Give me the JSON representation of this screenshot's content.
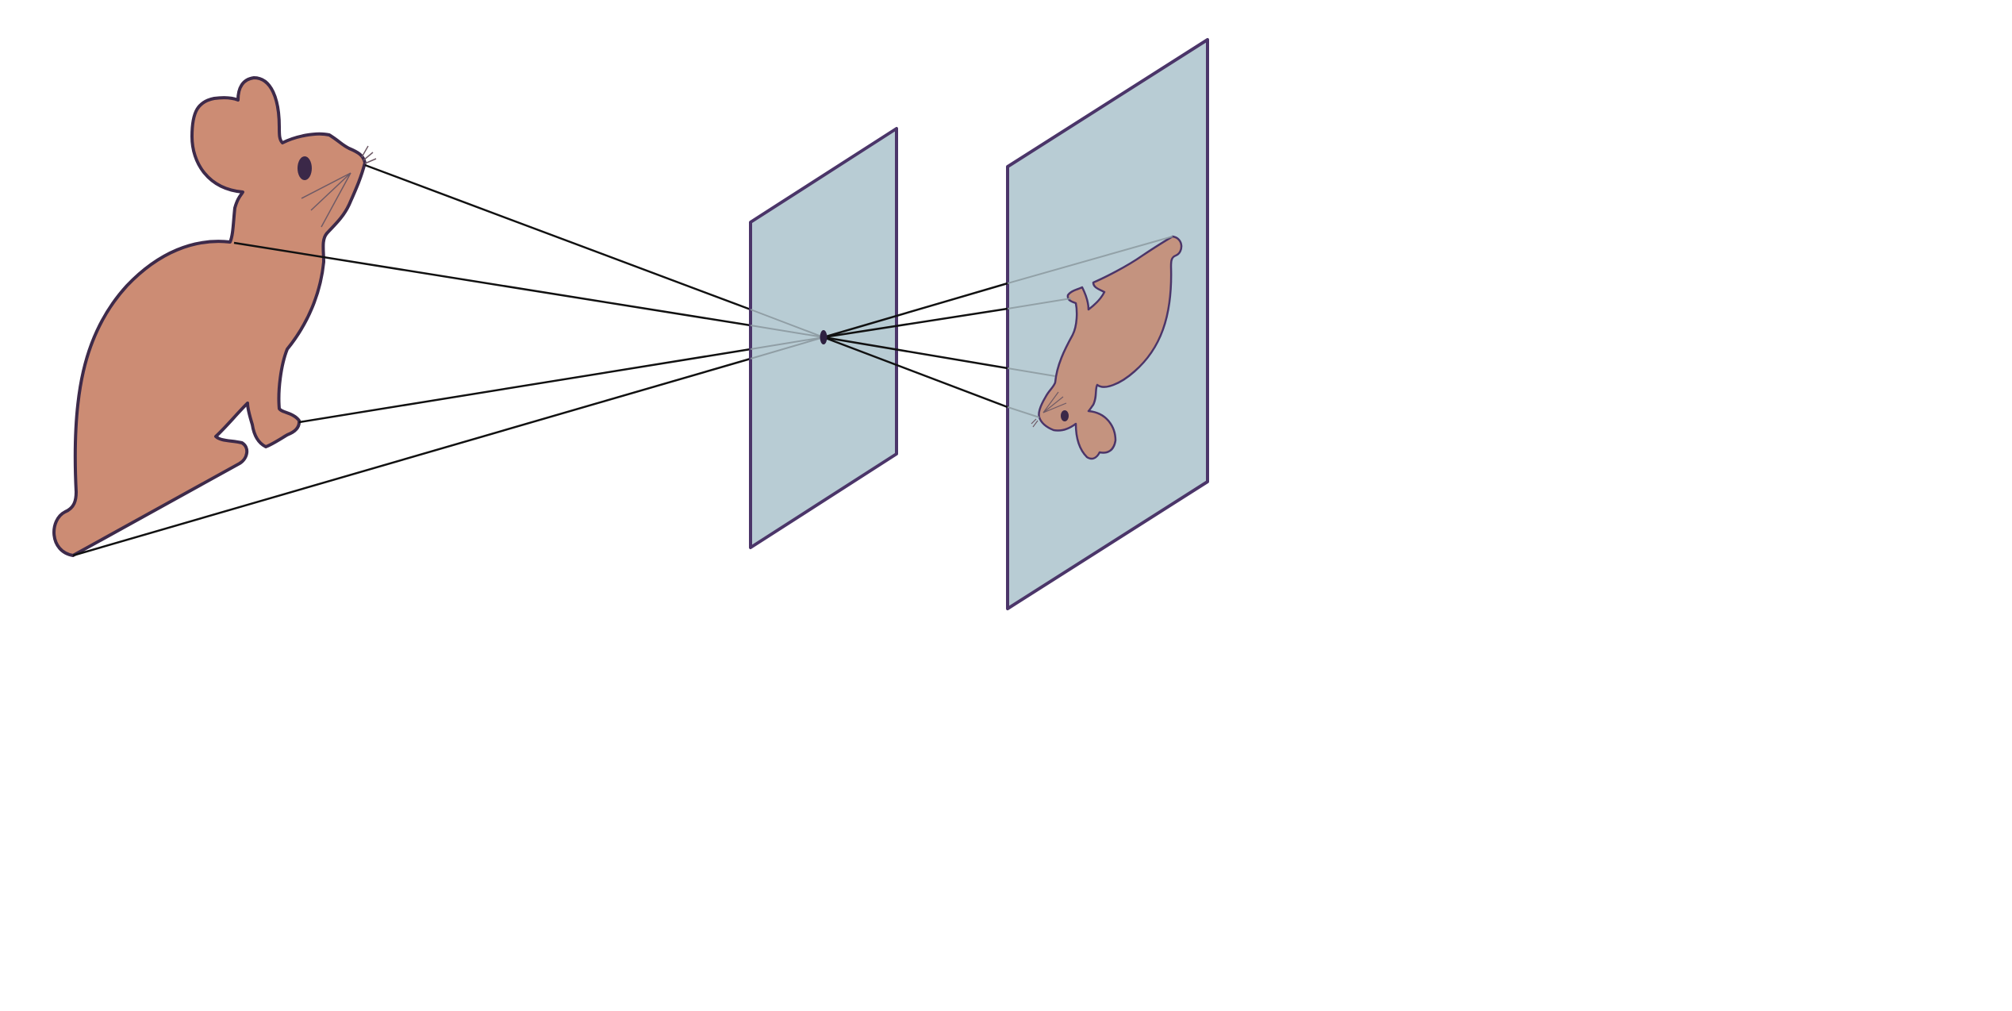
{
  "diagram": {
    "kind": "pinhole camera projection",
    "elements": [
      "object-rabbit",
      "pinhole-screen",
      "pinhole",
      "image-plane",
      "inverted-image",
      "projection-rays"
    ]
  },
  "colors": {
    "background": "#ffffff",
    "rabbit_fill": "#cc8c74",
    "rabbit_outline": "#3d2a4a",
    "eye": "#3b2848",
    "whisker": "#6e5a66",
    "plane_fill": "#b8ccd4",
    "plane_outline": "#4b3569",
    "ray": "#111111",
    "ray_faded": "#8c9aa0",
    "inverted_fill": "#c4937f"
  }
}
